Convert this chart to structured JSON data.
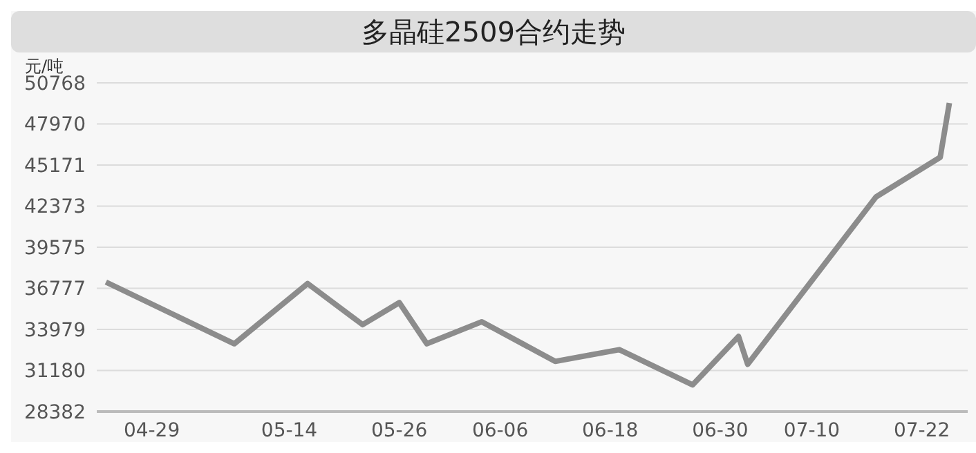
{
  "chart_data": {
    "type": "line",
    "title": "多晶硅2509合约走势",
    "ylabel": "元/吨",
    "x": [
      "--04-24",
      "--05-08",
      "--05-16",
      "--05-22",
      "--05-26",
      "--05-29",
      "--06-04",
      "--06-12",
      "--06-19",
      "--06-27",
      "--07-02",
      "--07-03",
      "--07-17",
      "--07-24",
      "--07-25"
    ],
    "series": [
      {
        "color": "#8c8c8c",
        "values": [
          37200,
          33000,
          37100,
          34300,
          35800,
          33000,
          34500,
          31800,
          32600,
          30200,
          33500,
          31600,
          43000,
          45700,
          49400
        ]
      }
    ],
    "xlim": [
      "--04-23",
      "--07-27"
    ],
    "xticks": [
      {
        "value": "--04-29",
        "label": "04-29"
      },
      {
        "value": "--05-14",
        "label": "05-14"
      },
      {
        "value": "--05-26",
        "label": "05-26"
      },
      {
        "value": "--06-06",
        "label": "06-06"
      },
      {
        "value": "--06-18",
        "label": "06-18"
      },
      {
        "value": "--06-30",
        "label": "06-30"
      },
      {
        "value": "--07-10",
        "label": "07-10"
      },
      {
        "value": "--07-22",
        "label": "07-22"
      }
    ],
    "ylim": [
      28382,
      50768
    ],
    "yticks": [
      28382,
      31180,
      33979,
      36777,
      39575,
      42373,
      45171,
      47970,
      50768
    ],
    "grid": "y",
    "legend": false,
    "marker": "none",
    "line_style": "solid"
  }
}
